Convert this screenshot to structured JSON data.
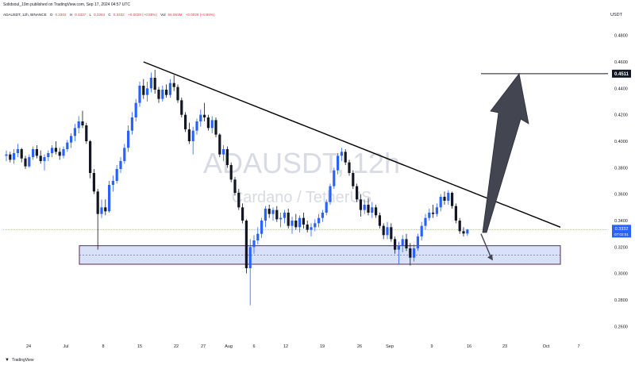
{
  "header": {
    "publish_line": "Solidsoul_19m published on TradingView.com, Sep 17, 2024 04:57 UTC",
    "symbol": "ADAUSDT, 12h, BINANCE",
    "open_label": "O",
    "open_value": "0.3302",
    "high_label": "H",
    "high_value": "0.3337",
    "low_label": "L",
    "low_value": "0.3284",
    "close_label": "C",
    "close_value": "0.3332",
    "change": "+0.0029 (+0.88%)",
    "vol_label": "Vol",
    "vol_value": "66.061M",
    "change2": "+0.0029 (+0.88%)"
  },
  "currency": "USDT",
  "watermark": {
    "symbol": "ADAUSDT, 12h",
    "name": "Cardano / TetherUS"
  },
  "footer": {
    "logo_text": "TradingView"
  },
  "price_label": {
    "price": "0.3332",
    "countdown": "07:02:51"
  },
  "target_label": "0.4511",
  "colors": {
    "up": "#2962ff",
    "down": "#131722",
    "zone_fill": "#c9d4f7",
    "zone_border": "#5b2a4a",
    "trendline": "#000000",
    "arrow": "#434651",
    "price_tag": "#2962ff"
  },
  "chart_data": {
    "type": "candlestick",
    "symbol": "ADAUSDT",
    "timeframe": "12h",
    "exchange": "BINANCE",
    "y_axis": {
      "ticks": [
        "0.4800",
        "0.4600",
        "0.4400",
        "0.4200",
        "0.4000",
        "0.3800",
        "0.3600",
        "0.3400",
        "0.3200",
        "0.3000",
        "0.2800",
        "0.2600"
      ],
      "ylim": [
        0.25,
        0.49
      ]
    },
    "x_axis": {
      "ticks": [
        "24",
        "Jul",
        "8",
        "15",
        "22",
        "27",
        "Aug",
        "6",
        "12",
        "19",
        "26",
        "Sep",
        "9",
        "16",
        "23",
        "Oct",
        "7"
      ]
    },
    "candles": [
      [
        0.389,
        0.393,
        0.385,
        0.39
      ],
      [
        0.39,
        0.392,
        0.384,
        0.386
      ],
      [
        0.386,
        0.394,
        0.383,
        0.391
      ],
      [
        0.391,
        0.398,
        0.388,
        0.394
      ],
      [
        0.394,
        0.395,
        0.384,
        0.387
      ],
      [
        0.387,
        0.389,
        0.379,
        0.381
      ],
      [
        0.381,
        0.39,
        0.38,
        0.388
      ],
      [
        0.388,
        0.396,
        0.386,
        0.394
      ],
      [
        0.394,
        0.397,
        0.387,
        0.389
      ],
      [
        0.389,
        0.393,
        0.383,
        0.385
      ],
      [
        0.385,
        0.39,
        0.378,
        0.388
      ],
      [
        0.388,
        0.393,
        0.385,
        0.391
      ],
      [
        0.391,
        0.397,
        0.388,
        0.395
      ],
      [
        0.395,
        0.4,
        0.39,
        0.392
      ],
      [
        0.392,
        0.395,
        0.386,
        0.389
      ],
      [
        0.389,
        0.396,
        0.387,
        0.394
      ],
      [
        0.394,
        0.401,
        0.392,
        0.399
      ],
      [
        0.399,
        0.406,
        0.395,
        0.404
      ],
      [
        0.404,
        0.413,
        0.4,
        0.41
      ],
      [
        0.41,
        0.419,
        0.406,
        0.415
      ],
      [
        0.415,
        0.423,
        0.41,
        0.412
      ],
      [
        0.412,
        0.414,
        0.398,
        0.4
      ],
      [
        0.4,
        0.401,
        0.372,
        0.376
      ],
      [
        0.376,
        0.379,
        0.36,
        0.362
      ],
      [
        0.362,
        0.364,
        0.318,
        0.345
      ],
      [
        0.345,
        0.356,
        0.342,
        0.35
      ],
      [
        0.35,
        0.356,
        0.344,
        0.347
      ],
      [
        0.347,
        0.37,
        0.346,
        0.367
      ],
      [
        0.367,
        0.374,
        0.362,
        0.37
      ],
      [
        0.37,
        0.382,
        0.368,
        0.379
      ],
      [
        0.379,
        0.388,
        0.376,
        0.385
      ],
      [
        0.385,
        0.398,
        0.383,
        0.395
      ],
      [
        0.395,
        0.412,
        0.392,
        0.408
      ],
      [
        0.408,
        0.422,
        0.405,
        0.418
      ],
      [
        0.418,
        0.432,
        0.415,
        0.429
      ],
      [
        0.429,
        0.445,
        0.426,
        0.442
      ],
      [
        0.442,
        0.447,
        0.432,
        0.435
      ],
      [
        0.435,
        0.445,
        0.43,
        0.44
      ],
      [
        0.44,
        0.452,
        0.437,
        0.448
      ],
      [
        0.448,
        0.454,
        0.436,
        0.439
      ],
      [
        0.439,
        0.441,
        0.429,
        0.432
      ],
      [
        0.432,
        0.442,
        0.43,
        0.439
      ],
      [
        0.439,
        0.443,
        0.433,
        0.435
      ],
      [
        0.435,
        0.447,
        0.433,
        0.444
      ],
      [
        0.444,
        0.45,
        0.438,
        0.441
      ],
      [
        0.441,
        0.443,
        0.429,
        0.431
      ],
      [
        0.431,
        0.433,
        0.418,
        0.42
      ],
      [
        0.42,
        0.422,
        0.407,
        0.409
      ],
      [
        0.409,
        0.414,
        0.398,
        0.4
      ],
      [
        0.4,
        0.411,
        0.39,
        0.408
      ],
      [
        0.408,
        0.417,
        0.405,
        0.415
      ],
      [
        0.415,
        0.424,
        0.411,
        0.42
      ],
      [
        0.42,
        0.429,
        0.415,
        0.418
      ],
      [
        0.418,
        0.42,
        0.408,
        0.41
      ],
      [
        0.41,
        0.419,
        0.406,
        0.416
      ],
      [
        0.416,
        0.418,
        0.403,
        0.405
      ],
      [
        0.405,
        0.406,
        0.388,
        0.39
      ],
      [
        0.39,
        0.397,
        0.385,
        0.394
      ],
      [
        0.394,
        0.396,
        0.38,
        0.382
      ],
      [
        0.382,
        0.384,
        0.369,
        0.371
      ],
      [
        0.371,
        0.373,
        0.359,
        0.361
      ],
      [
        0.361,
        0.364,
        0.348,
        0.35
      ],
      [
        0.35,
        0.353,
        0.338,
        0.34
      ],
      [
        0.34,
        0.341,
        0.3,
        0.304
      ],
      [
        0.304,
        0.326,
        0.276,
        0.32
      ],
      [
        0.32,
        0.329,
        0.315,
        0.325
      ],
      [
        0.325,
        0.335,
        0.322,
        0.33
      ],
      [
        0.33,
        0.342,
        0.327,
        0.34
      ],
      [
        0.34,
        0.351,
        0.335,
        0.349
      ],
      [
        0.349,
        0.352,
        0.342,
        0.345
      ],
      [
        0.345,
        0.35,
        0.34,
        0.348
      ],
      [
        0.348,
        0.351,
        0.339,
        0.341
      ],
      [
        0.341,
        0.346,
        0.335,
        0.342
      ],
      [
        0.342,
        0.348,
        0.338,
        0.346
      ],
      [
        0.346,
        0.349,
        0.334,
        0.336
      ],
      [
        0.336,
        0.343,
        0.33,
        0.34
      ],
      [
        0.34,
        0.345,
        0.333,
        0.335
      ],
      [
        0.335,
        0.344,
        0.331,
        0.342
      ],
      [
        0.342,
        0.346,
        0.334,
        0.337
      ],
      [
        0.337,
        0.34,
        0.331,
        0.333
      ],
      [
        0.333,
        0.338,
        0.328,
        0.335
      ],
      [
        0.335,
        0.341,
        0.332,
        0.338
      ],
      [
        0.338,
        0.345,
        0.335,
        0.342
      ],
      [
        0.342,
        0.348,
        0.339,
        0.346
      ],
      [
        0.346,
        0.356,
        0.344,
        0.354
      ],
      [
        0.354,
        0.368,
        0.352,
        0.366
      ],
      [
        0.366,
        0.38,
        0.364,
        0.378
      ],
      [
        0.378,
        0.391,
        0.375,
        0.389
      ],
      [
        0.389,
        0.395,
        0.385,
        0.392
      ],
      [
        0.392,
        0.394,
        0.382,
        0.384
      ],
      [
        0.384,
        0.386,
        0.374,
        0.376
      ],
      [
        0.376,
        0.378,
        0.364,
        0.366
      ],
      [
        0.366,
        0.368,
        0.354,
        0.356
      ],
      [
        0.356,
        0.36,
        0.343,
        0.348
      ],
      [
        0.348,
        0.356,
        0.345,
        0.352
      ],
      [
        0.352,
        0.357,
        0.344,
        0.346
      ],
      [
        0.346,
        0.354,
        0.342,
        0.35
      ],
      [
        0.35,
        0.352,
        0.342,
        0.344
      ],
      [
        0.344,
        0.346,
        0.334,
        0.336
      ],
      [
        0.336,
        0.338,
        0.326,
        0.329
      ],
      [
        0.329,
        0.339,
        0.326,
        0.335
      ],
      [
        0.335,
        0.338,
        0.324,
        0.326
      ],
      [
        0.326,
        0.328,
        0.315,
        0.318
      ],
      [
        0.318,
        0.324,
        0.307,
        0.321
      ],
      [
        0.321,
        0.329,
        0.316,
        0.326
      ],
      [
        0.326,
        0.33,
        0.317,
        0.319
      ],
      [
        0.319,
        0.323,
        0.306,
        0.312
      ],
      [
        0.312,
        0.322,
        0.309,
        0.319
      ],
      [
        0.319,
        0.33,
        0.317,
        0.328
      ],
      [
        0.328,
        0.339,
        0.325,
        0.336
      ],
      [
        0.336,
        0.345,
        0.333,
        0.342
      ],
      [
        0.342,
        0.349,
        0.34,
        0.346
      ],
      [
        0.346,
        0.352,
        0.342,
        0.345
      ],
      [
        0.345,
        0.353,
        0.343,
        0.35
      ],
      [
        0.35,
        0.36,
        0.347,
        0.358
      ],
      [
        0.358,
        0.362,
        0.352,
        0.355
      ],
      [
        0.355,
        0.363,
        0.352,
        0.361
      ],
      [
        0.361,
        0.362,
        0.349,
        0.351
      ],
      [
        0.351,
        0.353,
        0.338,
        0.34
      ],
      [
        0.34,
        0.342,
        0.33,
        0.332
      ],
      [
        0.332,
        0.335,
        0.328,
        0.3302
      ],
      [
        0.3302,
        0.3337,
        0.3284,
        0.3332
      ]
    ],
    "annotations": {
      "descending_trendline": {
        "from": {
          "candle": 36,
          "price": 0.46
        },
        "to": {
          "x_label": "Oct",
          "price": 0.335
        }
      },
      "support_zone": {
        "from_price": 0.307,
        "to_price": 0.321,
        "mid_dashed": 0.314
      },
      "target_level": 0.4511,
      "target_arrow": {
        "start_price": 0.331,
        "end_price": 0.4511
      },
      "small_down_arrow": {
        "start_price": 0.33,
        "end_price": 0.314
      },
      "current_price_line": 0.3332
    }
  }
}
